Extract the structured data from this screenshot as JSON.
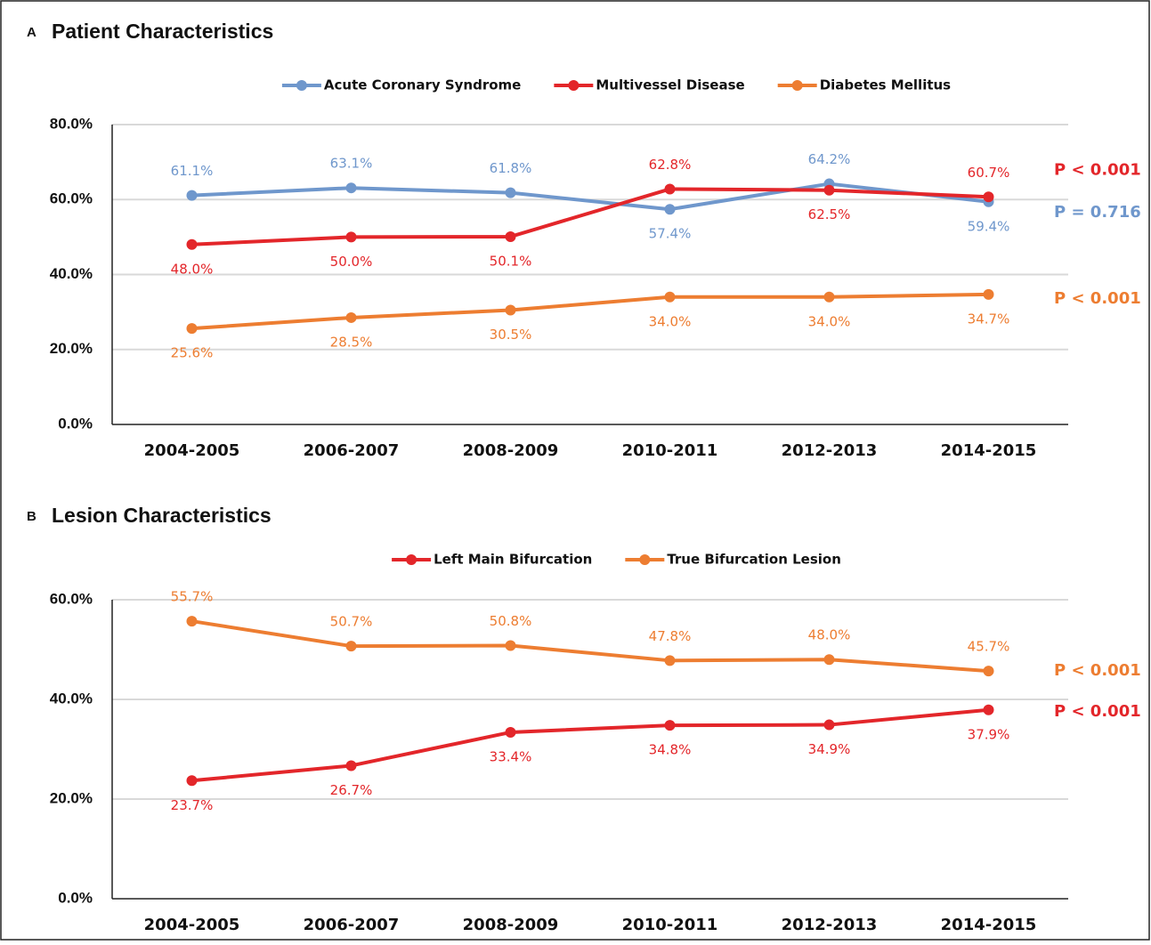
{
  "chart_data": [
    {
      "type": "line",
      "panel_label": "A",
      "title": "Patient Characteristics",
      "categories": [
        "2004-2005",
        "2006-2007",
        "2008-2009",
        "2010-2011",
        "2012-2013",
        "2014-2015"
      ],
      "ylim": [
        0,
        80
      ],
      "yticks": [
        {
          "value": 0,
          "label": "0.0%"
        },
        {
          "value": 20,
          "label": "20.0%"
        },
        {
          "value": 40,
          "label": "40.0%"
        },
        {
          "value": 60,
          "label": "60.0%"
        },
        {
          "value": 80,
          "label": "80.0%"
        }
      ],
      "grid": true,
      "legend": "top",
      "series": [
        {
          "name": "Acute Coronary Syndrome",
          "color": "#6f97cc",
          "values": [
            61.1,
            63.1,
            61.8,
            57.4,
            64.2,
            59.4
          ],
          "value_labels": [
            "61.1%",
            "63.1%",
            "61.8%",
            "57.4%",
            "64.2%",
            "59.4%"
          ],
          "p_value": "P = 0.716"
        },
        {
          "name": "Multivessel Disease",
          "color": "#e3262a",
          "values": [
            48.0,
            50.0,
            50.1,
            62.8,
            62.5,
            60.7
          ],
          "value_labels": [
            "48.0%",
            "50.0%",
            "50.1%",
            "62.8%",
            "62.5%",
            "60.7%"
          ],
          "p_value": "P < 0.001"
        },
        {
          "name": "Diabetes Mellitus",
          "color": "#ed7d31",
          "values": [
            25.6,
            28.5,
            30.5,
            34.0,
            34.0,
            34.7
          ],
          "value_labels": [
            "25.6%",
            "28.5%",
            "30.5%",
            "34.0%",
            "34.0%",
            "34.7%"
          ],
          "p_value": "P < 0.001"
        }
      ]
    },
    {
      "type": "line",
      "panel_label": "B",
      "title": "Lesion Characteristics",
      "categories": [
        "2004-2005",
        "2006-2007",
        "2008-2009",
        "2010-2011",
        "2012-2013",
        "2014-2015"
      ],
      "ylim": [
        0,
        60
      ],
      "yticks": [
        {
          "value": 0,
          "label": "0.0%"
        },
        {
          "value": 20,
          "label": "20.0%"
        },
        {
          "value": 40,
          "label": "40.0%"
        },
        {
          "value": 60,
          "label": "60.0%"
        }
      ],
      "grid": true,
      "legend": "top",
      "series": [
        {
          "name": "Left Main Bifurcation",
          "color": "#e3262a",
          "values": [
            23.7,
            26.7,
            33.4,
            34.8,
            34.9,
            37.9
          ],
          "value_labels": [
            "23.7%",
            "26.7%",
            "33.4%",
            "34.8%",
            "34.9%",
            "37.9%"
          ],
          "p_value": "P < 0.001"
        },
        {
          "name": "True Bifurcation Lesion",
          "color": "#ed7d31",
          "values": [
            55.7,
            50.7,
            50.8,
            47.8,
            48.0,
            45.7
          ],
          "value_labels": [
            "55.7%",
            "50.7%",
            "50.8%",
            "47.8%",
            "48.0%",
            "45.7%"
          ],
          "p_value": "P < 0.001"
        }
      ]
    }
  ]
}
